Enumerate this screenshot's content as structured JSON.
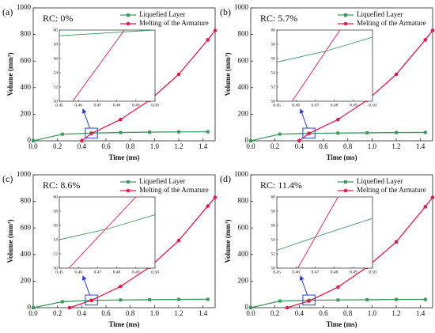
{
  "chart_data": [
    {
      "type": "line",
      "label": "(a)",
      "annotation": "RC: 0%",
      "xlabel": "Time (ms)",
      "ylabel": "Volume (mm³)",
      "legend": "upper right",
      "xlim": [
        0,
        1.5
      ],
      "xticks": [
        {
          "value": 0,
          "label": "0.0"
        },
        0.2,
        0.4,
        0.6,
        0.8,
        {
          "value": 1,
          "label": "1.0"
        },
        1.2,
        1.4
      ],
      "ylim": [
        0,
        1000
      ],
      "yticks": [
        0,
        200,
        400,
        600,
        800,
        1000
      ],
      "series": [
        {
          "name": "Liquefied Layer",
          "color": "#3c9b5a",
          "marker": "s",
          "x": [
            0,
            0.24,
            0.48,
            0.72,
            0.96,
            1.2,
            1.44
          ],
          "values": [
            0,
            50,
            58,
            62,
            65,
            67,
            68
          ]
        },
        {
          "name": "Melting of the Armature",
          "color": "#e8194a",
          "marker": "o",
          "x": [
            0.4,
            0.48,
            0.72,
            0.96,
            1.2,
            1.44,
            1.5
          ],
          "values": [
            0,
            55,
            160,
            305,
            500,
            760,
            830
          ]
        }
      ],
      "inset": {
        "xlim": [
          0.45,
          0.5
        ],
        "xticks": [
          0.45,
          0.46,
          0.47,
          0.48,
          0.49,
          {
            "value": 0.5,
            "label": "0.50"
          }
        ],
        "ylim": [
          50,
          60
        ],
        "yticks": [
          50,
          52,
          54,
          56,
          58,
          60
        ],
        "series": [
          {
            "color": "#3c9b5a",
            "x": [
              0.45,
              0.475,
              0.5
            ],
            "values": [
              59.2,
              59.6,
              60
            ]
          },
          {
            "color": "#e8194a",
            "x": [
              0.457,
              0.484
            ],
            "values": [
              50,
              60
            ]
          }
        ]
      }
    },
    {
      "type": "line",
      "label": "(b)",
      "annotation": "RC: 5.7%",
      "xlabel": "Time (ms)",
      "ylabel": "Volume (mm³)",
      "legend": "upper right",
      "xlim": [
        0,
        1.5
      ],
      "xticks": [
        {
          "value": 0,
          "label": "0.0"
        },
        0.2,
        0.4,
        0.6,
        0.8,
        {
          "value": 1,
          "label": "1.0"
        },
        1.2,
        1.4
      ],
      "ylim": [
        0,
        1000
      ],
      "yticks": [
        0,
        200,
        400,
        600,
        800,
        1000
      ],
      "series": [
        {
          "name": "Liquefied Layer",
          "color": "#3c9b5a",
          "marker": "s",
          "x": [
            0,
            0.24,
            0.48,
            0.72,
            0.96,
            1.2,
            1.44
          ],
          "values": [
            0,
            50,
            56,
            58,
            60,
            62,
            63
          ]
        },
        {
          "name": "Melting of the Armature",
          "color": "#e8194a",
          "marker": "o",
          "x": [
            0.4,
            0.48,
            0.72,
            0.96,
            1.2,
            1.44,
            1.5
          ],
          "values": [
            0,
            55,
            160,
            305,
            500,
            760,
            830
          ]
        }
      ],
      "inset": {
        "xlim": [
          0.45,
          0.5
        ],
        "xticks": [
          0.45,
          0.46,
          0.47,
          0.48,
          0.49,
          {
            "value": 0.5,
            "label": "0.50"
          }
        ],
        "ylim": [
          50,
          60
        ],
        "yticks": [
          50,
          52,
          54,
          56,
          58,
          60
        ],
        "series": [
          {
            "color": "#3c9b5a",
            "x": [
              0.45,
              0.475,
              0.5
            ],
            "values": [
              55.5,
              57,
              59
            ]
          },
          {
            "color": "#e8194a",
            "x": [
              0.458,
              0.483
            ],
            "values": [
              50,
              60
            ]
          }
        ]
      }
    },
    {
      "type": "line",
      "label": "(c)",
      "annotation": "RC: 8.6%",
      "xlabel": "Time (ms)",
      "ylabel": "Volume (mm³)",
      "legend": "upper right",
      "xlim": [
        0,
        1.5
      ],
      "xticks": [
        {
          "value": 0,
          "label": "0.0"
        },
        0.2,
        0.4,
        0.6,
        0.8,
        {
          "value": 1,
          "label": "1.0"
        },
        1.2,
        1.4
      ],
      "ylim": [
        0,
        1000
      ],
      "yticks": [
        0,
        200,
        400,
        600,
        800,
        1000
      ],
      "series": [
        {
          "name": "Liquefied Layer",
          "color": "#3c9b5a",
          "marker": "s",
          "x": [
            0,
            0.24,
            0.48,
            0.72,
            0.96,
            1.2,
            1.44
          ],
          "values": [
            0,
            45,
            55,
            58,
            60,
            62,
            63
          ]
        },
        {
          "name": "Melting of the Armature",
          "color": "#e8194a",
          "marker": "o",
          "x": [
            0.3,
            0.48,
            0.72,
            0.96,
            1.2,
            1.44,
            1.5
          ],
          "values": [
            0,
            55,
            160,
            305,
            505,
            765,
            830
          ]
        }
      ],
      "inset": {
        "xlim": [
          0.45,
          0.5
        ],
        "xticks": [
          0.45,
          0.46,
          0.47,
          0.48,
          0.49,
          {
            "value": 0.5,
            "label": "0.50"
          }
        ],
        "ylim": [
          50,
          60
        ],
        "yticks": [
          50,
          52,
          54,
          56,
          58,
          60
        ],
        "series": [
          {
            "color": "#3c9b5a",
            "x": [
              0.45,
              0.475,
              0.5
            ],
            "values": [
              54,
              55.5,
              57.5
            ]
          },
          {
            "color": "#e8194a",
            "x": [
              0.455,
              0.49
            ],
            "values": [
              50,
              60
            ]
          }
        ]
      }
    },
    {
      "type": "line",
      "label": "(d)",
      "annotation": "RC: 11.4%",
      "xlabel": "Time (ms)",
      "ylabel": "Volume (mm³)",
      "legend": "upper right",
      "xlim": [
        0,
        1.5
      ],
      "xticks": [
        {
          "value": 0,
          "label": "0.0"
        },
        0.2,
        0.4,
        0.6,
        0.8,
        {
          "value": 1,
          "label": "1.0"
        },
        1.2,
        1.4
      ],
      "ylim": [
        0,
        1000
      ],
      "yticks": [
        0,
        200,
        400,
        600,
        800,
        1000
      ],
      "series": [
        {
          "name": "Liquefied Layer",
          "color": "#3c9b5a",
          "marker": "s",
          "x": [
            0,
            0.24,
            0.48,
            0.72,
            0.96,
            1.2,
            1.44
          ],
          "values": [
            0,
            50,
            56,
            58,
            60,
            62,
            62
          ]
        },
        {
          "name": "Melting of the Armature",
          "color": "#e8194a",
          "marker": "o",
          "x": [
            0.3,
            0.48,
            0.72,
            0.96,
            1.2,
            1.44,
            1.5
          ],
          "values": [
            0,
            50,
            155,
            305,
            495,
            760,
            830
          ]
        }
      ],
      "inset": {
        "xlim": [
          0.45,
          0.5
        ],
        "xticks": [
          0.45,
          0.46,
          0.47,
          0.48,
          0.49,
          {
            "value": 0.5,
            "label": "0.50"
          }
        ],
        "ylim": [
          50,
          60
        ],
        "yticks": [
          50,
          52,
          54,
          56,
          58,
          60
        ],
        "series": [
          {
            "color": "#3c9b5a",
            "x": [
              0.45,
              0.475,
              0.5
            ],
            "values": [
              52.5,
              54.8,
              57
            ]
          },
          {
            "color": "#e8194a",
            "x": [
              0.461,
              0.482
            ],
            "values": [
              50,
              60
            ]
          }
        ]
      }
    }
  ]
}
